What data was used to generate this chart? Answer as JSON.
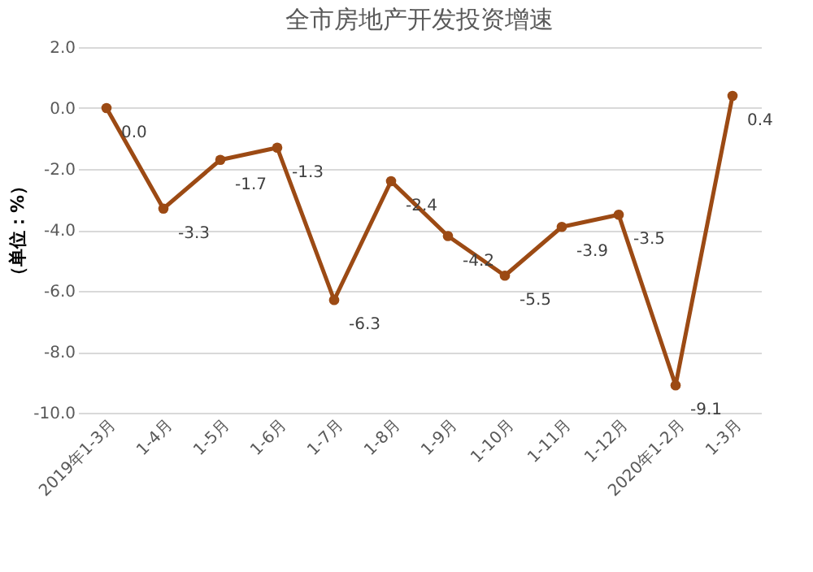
{
  "chart_data": {
    "type": "line",
    "title": "全市房地产开发投资增速",
    "ylabel": "（单位：%）",
    "categories": [
      "2019年1-3月",
      "1-4月",
      "1-5月",
      "1-6月",
      "1-7月",
      "1-8月",
      "1-9月",
      "1-10月",
      "1-11月",
      "1-12月",
      "2020年1-2月",
      "1-3月"
    ],
    "series": [
      {
        "color": "#9c4a14",
        "values": [
          0.0,
          -3.3,
          -1.7,
          -1.3,
          -6.3,
          -2.4,
          -4.2,
          -5.5,
          -3.9,
          -3.5,
          -9.1,
          0.4
        ]
      }
    ],
    "ylim": [
      -10,
      2
    ],
    "yticks": [
      {
        "value": -10,
        "label": "-10.0"
      },
      {
        "value": -8,
        "label": "-8.0"
      },
      {
        "value": -6,
        "label": "-6.0"
      },
      {
        "value": -4,
        "label": "-4.0"
      },
      {
        "value": -2,
        "label": "-2.0"
      },
      {
        "value": 0,
        "label": "0.0"
      },
      {
        "value": 2,
        "label": "2.0"
      }
    ],
    "grid": "y",
    "marker": "circle",
    "line_style": "solid",
    "value_labels": [
      "0.0",
      "-3.3",
      "-1.7",
      "-1.3",
      "-6.3",
      "-2.4",
      "-4.2",
      "-5.5",
      "-3.9",
      "-3.5",
      "-9.1",
      "0.4"
    ]
  }
}
